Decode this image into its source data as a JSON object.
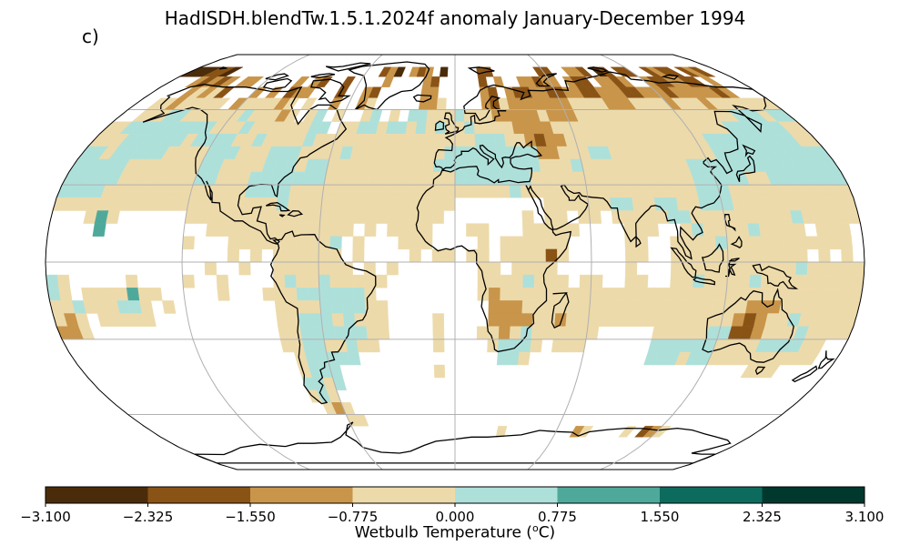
{
  "title": "HadISDH.blendTw.1.5.1.2024f anomaly January-December 1994",
  "panel_label": "c)",
  "colorbar": {
    "label_pre": "Wetbulb Temperature (",
    "label_sup": "o",
    "label_post": "C)",
    "ticks": [
      "−3.100",
      "−2.325",
      "−1.550",
      "−0.775",
      "0.000",
      "0.775",
      "1.550",
      "2.325",
      "3.100"
    ],
    "tick_values": [
      -3.1,
      -2.325,
      -1.55,
      -0.775,
      0.0,
      0.775,
      1.55,
      2.325,
      3.1
    ],
    "colors": [
      "#4b2c0a",
      "#8a5316",
      "#c8954a",
      "#eddaaa",
      "#aee0da",
      "#4fa99b",
      "#0d6b5e",
      "#00382e"
    ]
  },
  "map": {
    "projection": "Robinson",
    "graticule": true,
    "coastlines": true,
    "chart_data": {
      "type": "heatmap",
      "variable": "Wetbulb Temperature anomaly",
      "period": "January-December 1994",
      "vmin": -3.1,
      "vmax": 3.1
    }
  }
}
